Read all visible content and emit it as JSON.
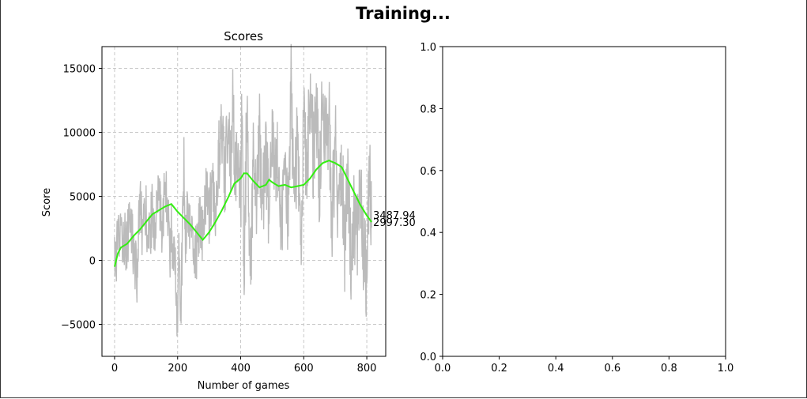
{
  "figure": {
    "suptitle": "Training..."
  },
  "chart_data": [
    {
      "type": "line",
      "title": "Scores",
      "xlabel": "Number of games",
      "ylabel": "Score",
      "xlim": [
        -40,
        860
      ],
      "ylim": [
        -7500,
        16700
      ],
      "xticks": [
        0,
        200,
        400,
        600,
        800
      ],
      "yticks": [
        -5000,
        0,
        5000,
        10000,
        15000
      ],
      "xtick_labels": [
        "0",
        "200",
        "400",
        "600",
        "800"
      ],
      "ytick_labels": [
        "−5000",
        "0",
        "5000",
        "10000",
        "15000"
      ],
      "grid": true,
      "grid_style": "dashed",
      "colors": {
        "raw": "#bbbbbb",
        "mean": "#33ee11",
        "grid": "#c8c8c8"
      },
      "series": [
        {
          "role": "raw scores",
          "keypoints": [
            [
              0,
              -500
            ],
            [
              10,
              1000
            ],
            [
              20,
              2000
            ],
            [
              40,
              1500
            ],
            [
              50,
              3500
            ],
            [
              60,
              1000
            ],
            [
              70,
              -1500
            ],
            [
              80,
              4500
            ],
            [
              90,
              2000
            ],
            [
              100,
              3500
            ],
            [
              110,
              1500
            ],
            [
              120,
              4000
            ],
            [
              130,
              2500
            ],
            [
              140,
              5000
            ],
            [
              150,
              3000
            ],
            [
              160,
              5500
            ],
            [
              170,
              3500
            ],
            [
              175,
              -500
            ],
            [
              180,
              4000
            ],
            [
              185,
              -2000
            ],
            [
              190,
              2000
            ],
            [
              200,
              -5000
            ],
            [
              205,
              2500
            ],
            [
              210,
              -4000
            ],
            [
              215,
              1500
            ],
            [
              220,
              7500
            ],
            [
              225,
              2000
            ],
            [
              230,
              4000
            ],
            [
              240,
              2500
            ],
            [
              250,
              1000
            ],
            [
              260,
              500
            ],
            [
              270,
              3000
            ],
            [
              280,
              2000
            ],
            [
              290,
              5000
            ],
            [
              300,
              3500
            ],
            [
              310,
              6000
            ],
            [
              320,
              4000
            ],
            [
              330,
              8000
            ],
            [
              340,
              9000
            ],
            [
              350,
              6500
            ],
            [
              360,
              11000
            ],
            [
              370,
              8000
            ],
            [
              375,
              14000
            ],
            [
              380,
              6000
            ],
            [
              390,
              9000
            ],
            [
              400,
              4000
            ],
            [
              405,
              13000
            ],
            [
              410,
              -1500
            ],
            [
              420,
              12000
            ],
            [
              430,
              -2000
            ],
            [
              440,
              8000
            ],
            [
              450,
              3500
            ],
            [
              460,
              9500
            ],
            [
              470,
              5000
            ],
            [
              480,
              8500
            ],
            [
              490,
              2500
            ],
            [
              500,
              10000
            ],
            [
              510,
              5500
            ],
            [
              520,
              9000
            ],
            [
              530,
              1500
            ],
            [
              540,
              8000
            ],
            [
              550,
              3500
            ],
            [
              560,
              13500
            ],
            [
              570,
              4500
            ],
            [
              580,
              9500
            ],
            [
              590,
              1000
            ],
            [
              600,
              10500
            ],
            [
              610,
              6500
            ],
            [
              620,
              14000
            ],
            [
              630,
              8000
            ],
            [
              640,
              12000
            ],
            [
              650,
              5500
            ],
            [
              660,
              13000
            ],
            [
              670,
              9000
            ],
            [
              680,
              11000
            ],
            [
              690,
              3000
            ],
            [
              700,
              9000
            ],
            [
              710,
              4000
            ],
            [
              720,
              8000
            ],
            [
              730,
              1000
            ],
            [
              740,
              6000
            ],
            [
              750,
              -500
            ],
            [
              760,
              3500
            ],
            [
              770,
              2000
            ],
            [
              780,
              5500
            ],
            [
              790,
              500
            ],
            [
              800,
              -1000
            ],
            [
              810,
              8000
            ],
            [
              815,
              2800
            ]
          ]
        },
        {
          "role": "moving average",
          "keypoints": [
            [
              0,
              -500
            ],
            [
              10,
              500
            ],
            [
              20,
              1000
            ],
            [
              40,
              1300
            ],
            [
              60,
              1900
            ],
            [
              80,
              2400
            ],
            [
              100,
              3000
            ],
            [
              120,
              3600
            ],
            [
              140,
              3900
            ],
            [
              160,
              4200
            ],
            [
              180,
              4400
            ],
            [
              200,
              3800
            ],
            [
              220,
              3300
            ],
            [
              240,
              2800
            ],
            [
              260,
              2200
            ],
            [
              280,
              1600
            ],
            [
              300,
              2200
            ],
            [
              320,
              3000
            ],
            [
              340,
              3900
            ],
            [
              360,
              4900
            ],
            [
              380,
              6000
            ],
            [
              400,
              6400
            ],
            [
              410,
              6800
            ],
            [
              420,
              6800
            ],
            [
              440,
              6200
            ],
            [
              460,
              5700
            ],
            [
              480,
              5900
            ],
            [
              490,
              6300
            ],
            [
              500,
              6100
            ],
            [
              520,
              5800
            ],
            [
              540,
              5900
            ],
            [
              560,
              5700
            ],
            [
              580,
              5800
            ],
            [
              600,
              5900
            ],
            [
              620,
              6400
            ],
            [
              640,
              7100
            ],
            [
              660,
              7600
            ],
            [
              680,
              7800
            ],
            [
              700,
              7600
            ],
            [
              720,
              7300
            ],
            [
              740,
              6300
            ],
            [
              760,
              5300
            ],
            [
              780,
              4300
            ],
            [
              800,
              3500
            ],
            [
              815,
              2997.3
            ]
          ]
        }
      ],
      "annotations": [
        "3487.94",
        "2997.30"
      ]
    },
    {
      "type": "line",
      "title": "",
      "xlim": [
        0,
        1
      ],
      "ylim": [
        0,
        1
      ],
      "xticks": [
        0,
        0.2,
        0.4,
        0.6,
        0.8,
        1.0
      ],
      "yticks": [
        0,
        0.2,
        0.4,
        0.6,
        0.8,
        1.0
      ],
      "xtick_labels": [
        "0.0",
        "0.2",
        "0.4",
        "0.6",
        "0.8",
        "1.0"
      ],
      "ytick_labels": [
        "0.0",
        "0.2",
        "0.4",
        "0.6",
        "0.8",
        "1.0"
      ],
      "grid": false,
      "series": []
    }
  ]
}
